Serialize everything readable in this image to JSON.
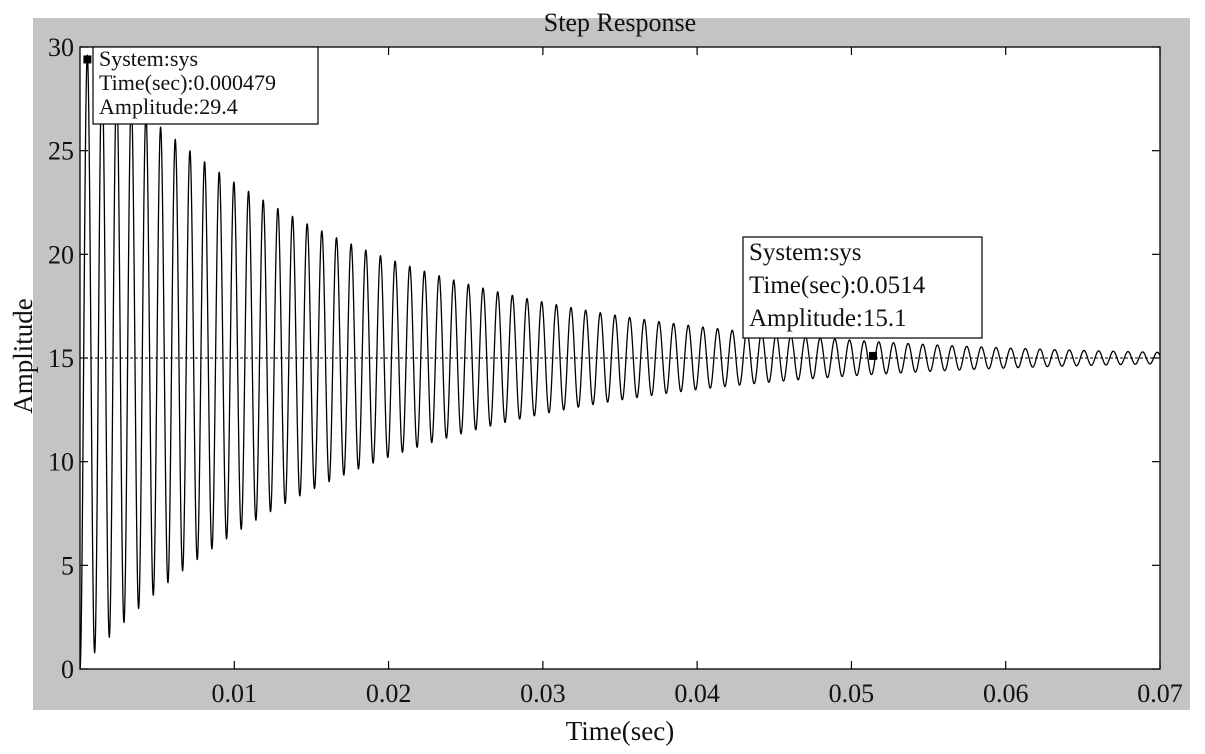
{
  "chart_data": {
    "type": "line",
    "title": "Step Response",
    "xlabel": "Time(sec)",
    "ylabel": "Amplitude",
    "xlim": [
      0,
      0.07
    ],
    "ylim": [
      0,
      30
    ],
    "xticks": [
      0.01,
      0.02,
      0.03,
      0.04,
      0.05,
      0.06,
      0.07
    ],
    "xtick_labels": [
      "0.01",
      "0.02",
      "0.03",
      "0.04",
      "0.05",
      "0.06",
      "0.07"
    ],
    "yticks": [
      0,
      5,
      10,
      15,
      20,
      25,
      30
    ],
    "ytick_labels": [
      "0",
      "5",
      "10",
      "15",
      "20",
      "25",
      "30"
    ],
    "grid": false,
    "reference_line": {
      "value": 15,
      "style": "dashed"
    },
    "series": [
      {
        "steady_state": 15,
        "initial_value": 0,
        "peak": {
          "time": 0.000479,
          "amplitude": 29.4
        },
        "oscillation_period": 0.00095,
        "decay_time_constant": 0.0175
      }
    ],
    "annotations": [
      {
        "time": 0.000479,
        "amplitude": 29.4,
        "lines": [
          "System:sys",
          "Time(sec):0.000479",
          "Amplitude:29.4"
        ]
      },
      {
        "time": 0.0514,
        "amplitude": 15.1,
        "lines": [
          "System:sys",
          "Time(sec):0.0514",
          "Amplitude:15.1"
        ]
      }
    ],
    "colors": {
      "frame": "#c4c4c4",
      "plot_background": "#ffffff",
      "line": "#000000"
    }
  }
}
